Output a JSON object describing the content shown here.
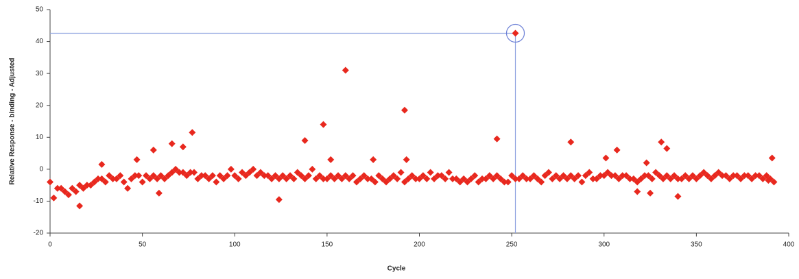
{
  "chart_data": {
    "type": "scatter",
    "x_label": "Cycle",
    "y_label": "Relative Response - binding - Adjusted",
    "xlim": [
      0,
      400
    ],
    "xticks": [
      0,
      50,
      100,
      150,
      200,
      250,
      300,
      350,
      400
    ],
    "ylim": [
      -20,
      50
    ],
    "yticks": [
      -20,
      -10,
      0,
      10,
      20,
      30,
      40,
      50
    ],
    "grid": false,
    "series": [
      {
        "color": "#e8281e",
        "x": [
          0,
          2,
          4,
          6,
          8,
          10,
          12,
          14,
          16,
          18,
          20,
          22,
          24,
          26,
          28,
          30,
          32,
          34,
          36,
          38,
          40,
          42,
          44,
          46,
          48,
          50,
          52,
          54,
          56,
          58,
          60,
          62,
          64,
          66,
          68,
          70,
          72,
          74,
          76,
          78,
          80,
          82,
          84,
          86,
          88,
          90,
          92,
          94,
          96,
          98,
          100,
          102,
          104,
          106,
          108,
          110,
          112,
          114,
          116,
          118,
          120,
          122,
          124,
          126,
          128,
          130,
          132,
          134,
          136,
          138,
          140,
          142,
          144,
          146,
          148,
          150,
          152,
          154,
          156,
          158,
          160,
          162,
          164,
          166,
          168,
          170,
          172,
          174,
          176,
          178,
          180,
          182,
          184,
          186,
          188,
          190,
          192,
          194,
          196,
          198,
          200,
          202,
          204,
          206,
          208,
          210,
          212,
          214,
          216,
          218,
          220,
          222,
          224,
          226,
          228,
          230,
          232,
          234,
          236,
          238,
          240,
          242,
          244,
          246,
          248,
          250,
          252,
          254,
          256,
          258,
          260,
          262,
          264,
          266,
          268,
          270,
          272,
          274,
          276,
          278,
          280,
          282,
          284,
          286,
          288,
          290,
          292,
          294,
          296,
          298,
          300,
          302,
          304,
          306,
          308,
          310,
          312,
          314,
          316,
          318,
          320,
          322,
          324,
          326,
          328,
          330,
          332,
          334,
          336,
          338,
          340,
          342,
          344,
          346,
          348,
          350,
          352,
          354,
          356,
          358,
          360,
          362,
          364,
          366,
          368,
          370,
          372,
          374,
          376,
          378,
          380,
          382,
          384,
          386,
          388,
          390,
          392,
          16,
          28,
          47,
          56,
          59,
          66,
          72,
          77,
          124,
          138,
          148,
          152,
          160,
          175,
          192,
          193,
          242,
          252,
          282,
          301,
          307,
          318,
          323,
          325,
          331,
          334,
          340,
          391,
          389
        ],
        "values": [
          -4,
          -9,
          -6,
          -6,
          -7,
          -8,
          -6,
          -7,
          -5,
          -6,
          -5,
          -5,
          -4,
          -3,
          -3,
          -4,
          -2,
          -3,
          -3,
          -2,
          -4,
          -6,
          -3,
          -2,
          -2,
          -4,
          -2,
          -3,
          -2,
          -3,
          -2,
          -3,
          -2,
          -1,
          0,
          -1,
          -1,
          -2,
          -1,
          -1,
          -3,
          -2,
          -2,
          -3,
          -2,
          -4,
          -2,
          -3,
          -2,
          0,
          -2,
          -3,
          -1,
          -2,
          -1,
          0,
          -2,
          -1,
          -2,
          -2,
          -3,
          -2,
          -3,
          -2,
          -3,
          -2,
          -3,
          -1,
          -2,
          -3,
          -2,
          0,
          -3,
          -2,
          -3,
          -3,
          -2,
          -3,
          -2,
          -3,
          -2,
          -3,
          -2,
          -4,
          -3,
          -2,
          -3,
          -3,
          -4,
          -2,
          -3,
          -4,
          -3,
          -2,
          -3,
          -1,
          -4,
          -3,
          -2,
          -3,
          -3,
          -2,
          -3,
          -1,
          -3,
          -2,
          -2,
          -3,
          -1,
          -3,
          -3,
          -4,
          -3,
          -4,
          -3,
          -2,
          -4,
          -3,
          -3,
          -2,
          -3,
          -2,
          -3,
          -4,
          -4,
          -2,
          -3,
          -3,
          -2,
          -3,
          -3,
          -2,
          -3,
          -4,
          -2,
          -1,
          -3,
          -2,
          -3,
          -2,
          -3,
          -2,
          -3,
          -2,
          -4,
          -2,
          -1,
          -3,
          -3,
          -2,
          -2,
          -1,
          -2,
          -2,
          -3,
          -2,
          -2,
          -3,
          -3,
          -4,
          -3,
          -2,
          -2,
          -3,
          -1,
          -2,
          -3,
          -2,
          -3,
          -2,
          -3,
          -3,
          -2,
          -3,
          -2,
          -3,
          -2,
          -1,
          -2,
          -3,
          -2,
          -1,
          -2,
          -2,
          -3,
          -2,
          -2,
          -3,
          -2,
          -2,
          -3,
          -2,
          -2,
          -3,
          -2,
          -3,
          -4,
          -11.5,
          1.5,
          3,
          6,
          -7.5,
          8,
          7,
          11.5,
          -9.5,
          9,
          14,
          3,
          31,
          3,
          18.5,
          3,
          9.5,
          42.6,
          8.5,
          3.5,
          6,
          -7,
          2,
          -7.5,
          8.5,
          6.5,
          -8.5,
          3.5,
          -3.5
        ]
      }
    ]
  }
}
